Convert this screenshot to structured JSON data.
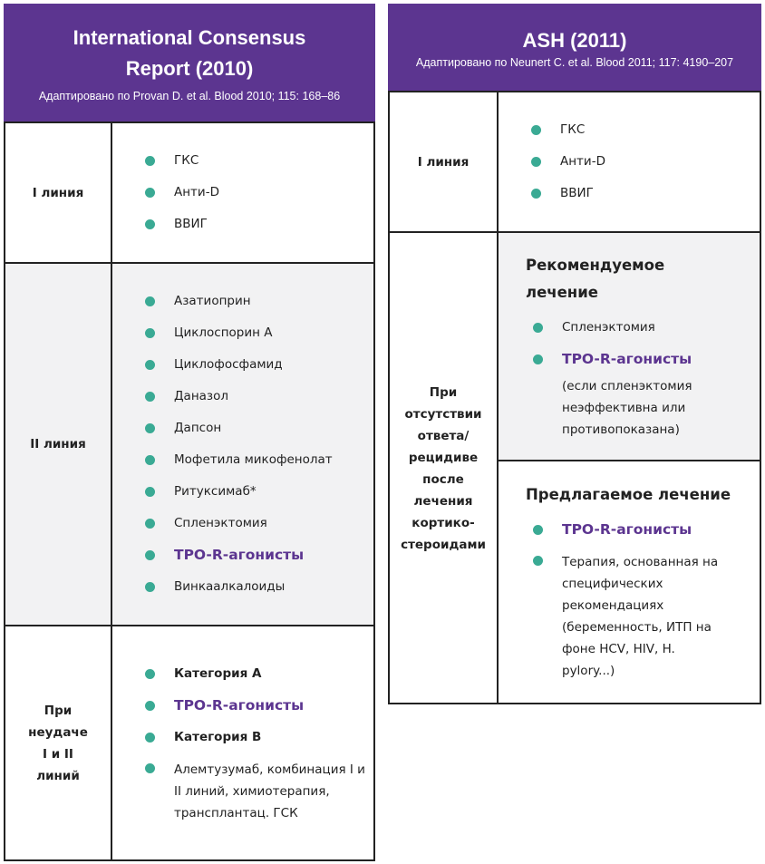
{
  "left": {
    "title": "International Consensus Report (2010)",
    "subtitle": "Адаптировано по Provan D. et al. Blood 2010; 115: 168–86",
    "rows": [
      {
        "label": "I линия",
        "items": [
          "ГКС",
          "Анти-D",
          "ВВИГ"
        ]
      },
      {
        "label": "II линия",
        "items": [
          "Азатиоприн",
          "Циклоспорин А",
          "Циклофосфамид",
          "Даназол",
          "Дапсон",
          "Мофетила микофенолат",
          "Ритуксимаб*",
          "Спленэктомия",
          "TPO-R-агонисты",
          "Винкаалкалоиды"
        ]
      },
      {
        "label": "При неудаче I и II линий",
        "items": [
          "Категория А",
          "TPO-R-агонисты",
          "Категория В",
          "Алемтузумаб, комбинация I и II линий, химиотерапия, трансплантац. ГСК"
        ]
      }
    ]
  },
  "right": {
    "title": "ASH (2011)",
    "subtitle": "Адаптировано по Neunert C. et al. Blood 2011; 117: 4190–207",
    "rows": [
      {
        "label": "I линия",
        "items": [
          "ГКС",
          "Анти-D",
          "ВВИГ"
        ]
      },
      {
        "label": "При отсутствии ответа/ рецидиве после лечения кортико-стероидами",
        "recommended": {
          "heading": "Рекомендуемое лечение",
          "items": [
            "Спленэктомия",
            "TPO-R-агонисты"
          ],
          "note": "(если спленэктомия неэффективна или противопоказана)"
        },
        "suggested": {
          "heading": "Предлагаемое лечение",
          "items": [
            "TPO-R-агонисты",
            "Терапия, основанная на специфических рекомендациях (беременность, ИТП на фоне HCV, HIV, H. pylory...)"
          ]
        }
      }
    ]
  },
  "colors": {
    "header": "#5c3590",
    "bullet": "#3aaa94",
    "highlight": "#5c3590",
    "alt_row": "#f2f2f3"
  }
}
